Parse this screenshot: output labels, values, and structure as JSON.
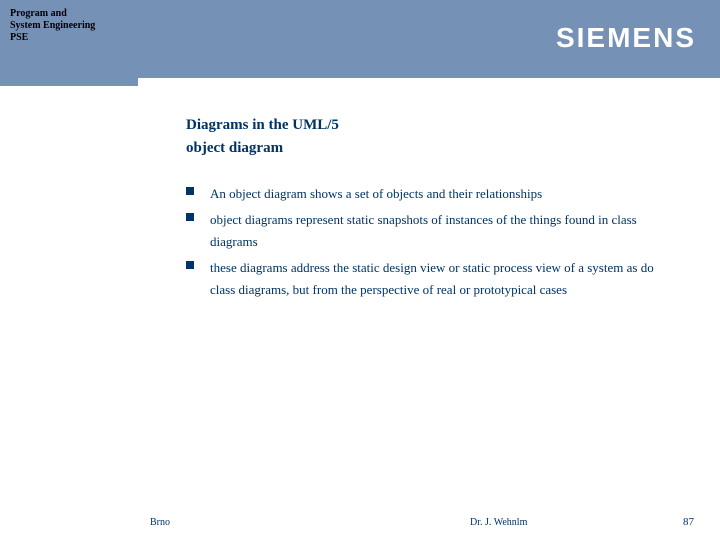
{
  "header": {
    "org_line1": "Program and",
    "org_line2": "System Engineering",
    "org_line3": "PSE",
    "logo_text": "SIEMENS"
  },
  "colors": {
    "header_bg": "#7591b6",
    "text_primary": "#003366",
    "logo": "#ffffff",
    "bullet": "#003366",
    "body_bg": "#ffffff"
  },
  "slide": {
    "title_line1": "Diagrams in the UML/5",
    "title_line2": "object diagram",
    "bullets": [
      "An object diagram shows a set of objects and their relationships",
      "object diagrams represent static snapshots of instances of the things found in class diagrams",
      "these diagrams address the static design view or static process view of a system as do class diagrams, but from the perspective of real or prototypical cases"
    ]
  },
  "footer": {
    "left": "Brno",
    "center": "Dr. J. Wehnlm",
    "page": "87"
  }
}
